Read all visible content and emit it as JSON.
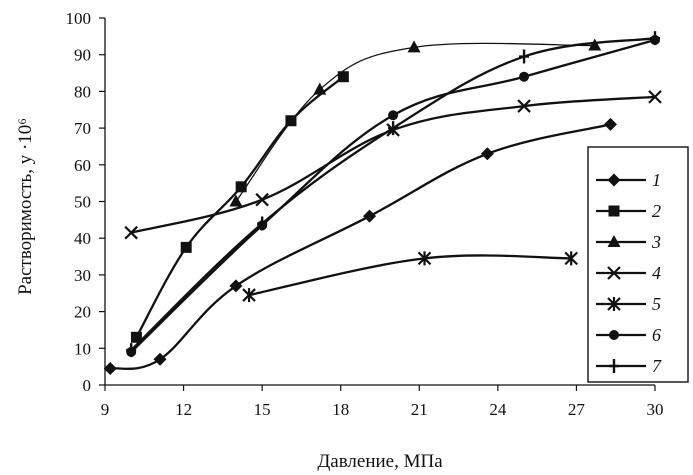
{
  "chart_data": {
    "type": "line",
    "xlabel": "Давление,  МПа",
    "ylabel": "Растворимость,  y ·10⁶",
    "xlim": [
      9,
      30
    ],
    "ylim": [
      0,
      100
    ],
    "xticks": [
      9,
      12,
      15,
      18,
      21,
      24,
      27,
      30
    ],
    "yticks": [
      0,
      10,
      20,
      30,
      40,
      50,
      60,
      70,
      80,
      90,
      100
    ],
    "grid": false,
    "legend_position": "right",
    "series": [
      {
        "name": "1",
        "marker": "diamond",
        "x": [
          9.2,
          11.1,
          14.0,
          19.1,
          23.6,
          28.3
        ],
        "y": [
          4.5,
          7,
          27,
          46,
          63,
          71
        ]
      },
      {
        "name": "2",
        "marker": "square",
        "x": [
          10.2,
          12.1,
          14.2,
          16.1,
          18.1
        ],
        "y": [
          13,
          37.5,
          54,
          72,
          84
        ]
      },
      {
        "name": "3",
        "marker": "triangle",
        "x": [
          14.0,
          17.2,
          20.8,
          27.7
        ],
        "y": [
          50,
          80.5,
          92,
          92.5
        ]
      },
      {
        "name": "4",
        "marker": "x",
        "x": [
          10.0,
          15.0,
          20.0,
          25.0,
          30.0
        ],
        "y": [
          41.5,
          50.5,
          69.5,
          76,
          78.5
        ]
      },
      {
        "name": "5",
        "marker": "star",
        "x": [
          14.5,
          21.2,
          26.8
        ],
        "y": [
          24.5,
          34.5,
          34.5
        ]
      },
      {
        "name": "6",
        "marker": "circle",
        "x": [
          10.0,
          15.0,
          20.0,
          25.0,
          30.0
        ],
        "y": [
          9,
          43.5,
          73.5,
          84,
          94
        ]
      },
      {
        "name": "7",
        "marker": "plus",
        "x": [
          10.0,
          15.0,
          20.0,
          25.0,
          30.0
        ],
        "y": [
          9.5,
          44,
          70,
          89.5,
          94.5
        ]
      }
    ]
  }
}
